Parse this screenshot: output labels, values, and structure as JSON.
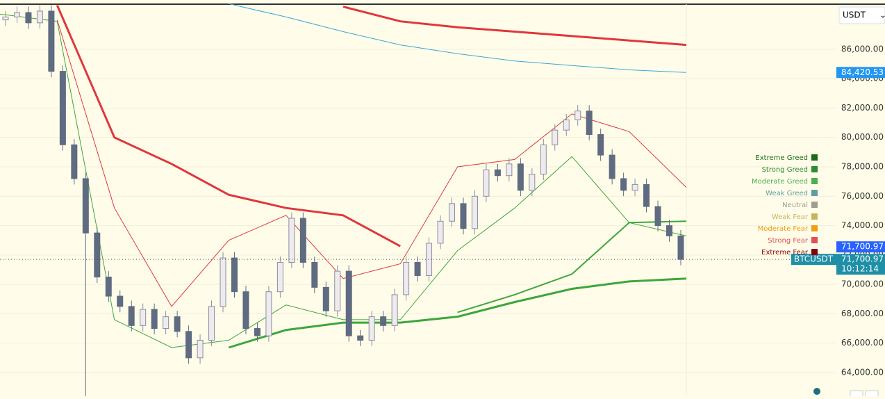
{
  "chart_data": {
    "type": "candlestick",
    "currency": "USDT",
    "ylim": [
      62390,
      89070
    ],
    "yticks": [
      {
        "value": 64000,
        "label": "64,000.00"
      },
      {
        "value": 66000,
        "label": "66,000.00"
      },
      {
        "value": 68000,
        "label": "68,000.00"
      },
      {
        "value": 70000,
        "label": "70,000.00"
      },
      {
        "value": 72000,
        "label": "72,000.00"
      },
      {
        "value": 74000,
        "label": "74,000.00"
      },
      {
        "value": 76000,
        "label": "76,000.00"
      },
      {
        "value": 78000,
        "label": "78,000.00"
      },
      {
        "value": 80000,
        "label": "80,000.00"
      },
      {
        "value": 82000,
        "label": "82,000.00"
      },
      {
        "value": 84000,
        "label": "84,000.00"
      },
      {
        "value": 86000,
        "label": "86,000.00"
      }
    ],
    "grid": true,
    "up_color": "#eeeaee",
    "down_color": "#5f6b80",
    "open": [
      88000,
      88200,
      88500,
      87800,
      88600,
      84500,
      79500,
      77200,
      73500,
      70500,
      69200,
      68500,
      67200,
      68300,
      67000,
      67800,
      66800,
      65000,
      66200,
      68500,
      71800,
      69500,
      67000,
      66500,
      69500,
      71500,
      74500,
      71500,
      69800,
      68200,
      70900,
      66500,
      66200,
      67800,
      67200,
      69300,
      71500,
      70600,
      72800,
      74300,
      75500,
      73800,
      76000,
      77800,
      77400,
      78200,
      76400,
      77500,
      79500,
      80500,
      81200,
      81800,
      80200,
      78800,
      77200,
      76400,
      76800,
      75300,
      74000,
      73300
    ],
    "high": [
      88600,
      88900,
      88900,
      89000,
      89000,
      84900,
      79900,
      77600,
      73900,
      70900,
      69600,
      68900,
      68700,
      68700,
      68200,
      68200,
      67200,
      66600,
      68900,
      72200,
      72200,
      69900,
      67400,
      69900,
      71900,
      74900,
      74900,
      71900,
      70200,
      71300,
      71300,
      66900,
      68200,
      68200,
      69700,
      71900,
      71900,
      73200,
      74700,
      75900,
      75900,
      76400,
      78200,
      78200,
      78600,
      78600,
      77900,
      79900,
      80900,
      81600,
      82200,
      82200,
      80600,
      79200,
      77600,
      77200,
      77200,
      75700,
      74400,
      73700
    ],
    "low": [
      87600,
      87800,
      87400,
      87400,
      84100,
      79100,
      76800,
      62400,
      70100,
      68800,
      68100,
      66800,
      66800,
      66600,
      66600,
      66400,
      64600,
      64600,
      65800,
      68100,
      69100,
      66600,
      66100,
      66100,
      69100,
      71100,
      71100,
      69400,
      67800,
      67800,
      66100,
      65800,
      65800,
      66800,
      66800,
      68900,
      70200,
      70200,
      72400,
      73900,
      73400,
      73400,
      75600,
      77000,
      77000,
      76000,
      76000,
      77100,
      79100,
      80100,
      80800,
      79800,
      78400,
      76800,
      76000,
      76000,
      74900,
      73600,
      72900,
      71300
    ],
    "close": [
      88200,
      88500,
      87800,
      88600,
      84500,
      79500,
      77200,
      73500,
      70500,
      69200,
      68500,
      67200,
      68300,
      67000,
      67800,
      66800,
      65000,
      66200,
      68500,
      71800,
      69500,
      67000,
      66500,
      69500,
      71500,
      74500,
      71500,
      69800,
      68200,
      70900,
      66500,
      66200,
      67800,
      67200,
      69300,
      71500,
      70600,
      72800,
      74300,
      75500,
      73800,
      76000,
      77800,
      77400,
      78200,
      76400,
      77500,
      79500,
      80500,
      81200,
      81800,
      80200,
      78800,
      77200,
      76400,
      76800,
      75300,
      74000,
      73300,
      71700.97
    ],
    "series": [
      {
        "color": "#e0373c",
        "width": 3,
        "values": [
          null,
          null,
          null,
          null,
          null,
          null,
          88900,
          87900,
          87500,
          87200,
          86900,
          86600,
          86300
        ]
      },
      {
        "color": "#e0373c",
        "width": 3,
        "values": [
          null,
          89000,
          80000,
          78200,
          76100,
          75200,
          74700,
          72600,
          null,
          null,
          null,
          null,
          null
        ]
      },
      {
        "color": "#e0373c",
        "width": 1,
        "values": [
          null,
          88000,
          75200,
          68500,
          73000,
          74700,
          70400,
          71400,
          78000,
          78500,
          81600,
          80400,
          76600
        ]
      },
      {
        "color": "#3aa6d8",
        "width": 1,
        "values": [
          null,
          null,
          null,
          null,
          89100,
          88200,
          87200,
          86300,
          85700,
          85200,
          84900,
          84600,
          84420.53
        ]
      },
      {
        "color": "#3da63d",
        "width": 3,
        "values": [
          null,
          null,
          null,
          null,
          65700,
          66900,
          67400,
          67400,
          67800,
          68800,
          69700,
          70200,
          70400
        ]
      },
      {
        "color": "#3da63d",
        "width": 2,
        "values": [
          null,
          null,
          null,
          null,
          null,
          null,
          null,
          null,
          68100,
          69300,
          70700,
          74200,
          74300
        ]
      },
      {
        "color": "#3da63d",
        "width": 1,
        "values": [
          88400,
          87900,
          67600,
          65700,
          66200,
          68600,
          67600,
          67600,
          72300,
          75200,
          78700,
          74200,
          73300
        ]
      }
    ],
    "price_tags": [
      {
        "value": 84420.53,
        "label": "84,420.53",
        "color": "#2196f3"
      },
      {
        "value": 71700.97,
        "label": "71,700.97",
        "color": "#2962ff"
      },
      {
        "value": 71700.97,
        "label": "71,700.97",
        "color": "#1e8fa6",
        "symbol": "BTCUSDT",
        "time": "10:12:14"
      }
    ],
    "sentiment_legend": [
      {
        "label": "Extreme Greed",
        "color": "#1a6b1a"
      },
      {
        "label": "Strong Greed",
        "color": "#2e8b2e"
      },
      {
        "label": "Moderate Greed",
        "color": "#4caf50"
      },
      {
        "label": "Weak Greed",
        "color": "#5f9ea0"
      },
      {
        "label": "Neutral",
        "color": "#9e9e8e"
      },
      {
        "label": "Weak Fear",
        "color": "#c8b560"
      },
      {
        "label": "Moderate Fear",
        "color": "#f39c12"
      },
      {
        "label": "Strong Fear",
        "color": "#e05050"
      },
      {
        "label": "Extreme Fear",
        "color": "#8b0000"
      }
    ]
  }
}
